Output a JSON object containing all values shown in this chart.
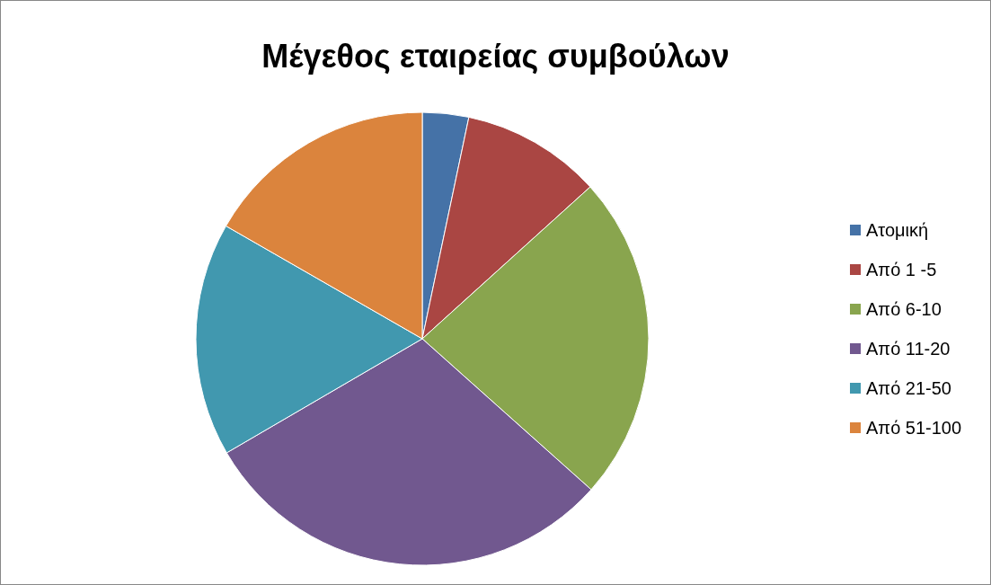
{
  "chart_data": {
    "type": "pie",
    "title": "Μέγεθος εταιρείας συμβούλων",
    "categories": [
      "Ατομική",
      "Από 1 -5",
      "Από 6-10",
      "Από 11-20",
      "Από 21-50",
      "Από 51-100"
    ],
    "values": [
      3.3,
      10,
      23.3,
      30,
      16.7,
      16.7
    ],
    "colors": [
      "#4572a7",
      "#aa4643",
      "#89a54e",
      "#71588f",
      "#4198af",
      "#db843d"
    ],
    "legend": "right"
  }
}
